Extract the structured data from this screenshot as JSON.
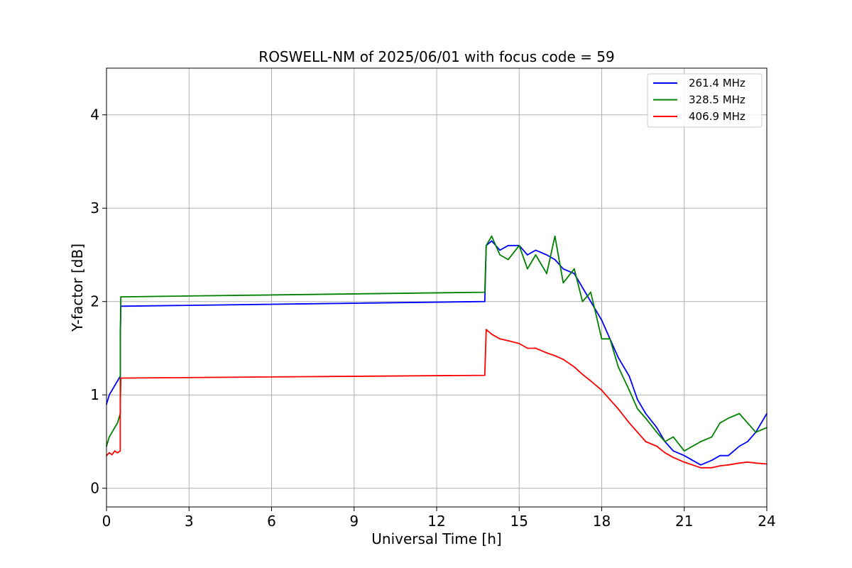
{
  "chart_data": {
    "type": "line",
    "title": "ROSWELL-NM of 2025/06/01 with focus code = 59",
    "xlabel": "Universal Time [h]",
    "ylabel": "Y-factor [dB]",
    "xlim": [
      0,
      24
    ],
    "ylim": [
      -0.2,
      4.5
    ],
    "xticks": [
      0,
      3,
      6,
      9,
      12,
      15,
      18,
      21,
      24
    ],
    "yticks": [
      0,
      1,
      2,
      3,
      4
    ],
    "grid": true,
    "legend_position": "top-right",
    "series": [
      {
        "name": "261.4 MHz",
        "color": "#0000ff",
        "x": [
          0,
          0.1,
          0.2,
          0.3,
          0.4,
          0.5,
          0.5,
          0.52,
          13.75,
          13.8,
          14.0,
          14.3,
          14.6,
          15.0,
          15.3,
          15.6,
          16.0,
          16.3,
          16.6,
          17.0,
          17.3,
          17.6,
          18.0,
          18.3,
          18.6,
          19.0,
          19.3,
          19.6,
          20.0,
          20.3,
          20.6,
          21.0,
          21.3,
          21.6,
          22.0,
          22.3,
          22.6,
          23.0,
          23.3,
          23.6,
          24.0
        ],
        "y": [
          0.9,
          1.0,
          1.05,
          1.1,
          1.15,
          1.2,
          1.6,
          1.95,
          2.0,
          2.6,
          2.65,
          2.55,
          2.6,
          2.6,
          2.5,
          2.55,
          2.5,
          2.45,
          2.35,
          2.3,
          2.15,
          2.0,
          1.8,
          1.6,
          1.4,
          1.2,
          0.95,
          0.8,
          0.65,
          0.5,
          0.4,
          0.35,
          0.3,
          0.25,
          0.3,
          0.35,
          0.35,
          0.45,
          0.5,
          0.6,
          0.8
        ]
      },
      {
        "name": "328.5 MHz",
        "color": "#008000",
        "x": [
          0,
          0.1,
          0.2,
          0.3,
          0.4,
          0.5,
          0.5,
          0.52,
          13.75,
          13.8,
          14.0,
          14.3,
          14.6,
          15.0,
          15.3,
          15.6,
          16.0,
          16.3,
          16.6,
          17.0,
          17.3,
          17.6,
          18.0,
          18.3,
          18.6,
          19.0,
          19.3,
          19.6,
          20.0,
          20.3,
          20.6,
          21.0,
          21.3,
          21.6,
          22.0,
          22.3,
          22.6,
          23.0,
          23.3,
          23.6,
          24.0
        ],
        "y": [
          0.45,
          0.55,
          0.6,
          0.65,
          0.7,
          0.8,
          1.6,
          2.05,
          2.1,
          2.6,
          2.7,
          2.5,
          2.45,
          2.6,
          2.35,
          2.5,
          2.3,
          2.7,
          2.2,
          2.35,
          2.0,
          2.1,
          1.6,
          1.6,
          1.3,
          1.05,
          0.85,
          0.75,
          0.6,
          0.5,
          0.55,
          0.4,
          0.45,
          0.5,
          0.55,
          0.7,
          0.75,
          0.8,
          0.7,
          0.6,
          0.65
        ]
      },
      {
        "name": "406.9 MHz",
        "color": "#ff0000",
        "x": [
          0,
          0.1,
          0.2,
          0.3,
          0.4,
          0.5,
          0.5,
          0.52,
          13.75,
          13.8,
          14.0,
          14.3,
          14.6,
          15.0,
          15.3,
          15.6,
          16.0,
          16.3,
          16.6,
          17.0,
          17.3,
          17.6,
          18.0,
          18.3,
          18.6,
          19.0,
          19.3,
          19.6,
          20.0,
          20.3,
          20.6,
          21.0,
          21.3,
          21.6,
          22.0,
          22.3,
          22.6,
          23.0,
          23.3,
          23.6,
          24.0
        ],
        "y": [
          0.35,
          0.38,
          0.36,
          0.4,
          0.38,
          0.4,
          0.9,
          1.18,
          1.21,
          1.7,
          1.65,
          1.6,
          1.58,
          1.55,
          1.5,
          1.5,
          1.45,
          1.42,
          1.38,
          1.3,
          1.22,
          1.15,
          1.05,
          0.95,
          0.85,
          0.7,
          0.6,
          0.5,
          0.45,
          0.38,
          0.33,
          0.28,
          0.25,
          0.22,
          0.22,
          0.24,
          0.25,
          0.27,
          0.28,
          0.27,
          0.26
        ]
      }
    ]
  }
}
